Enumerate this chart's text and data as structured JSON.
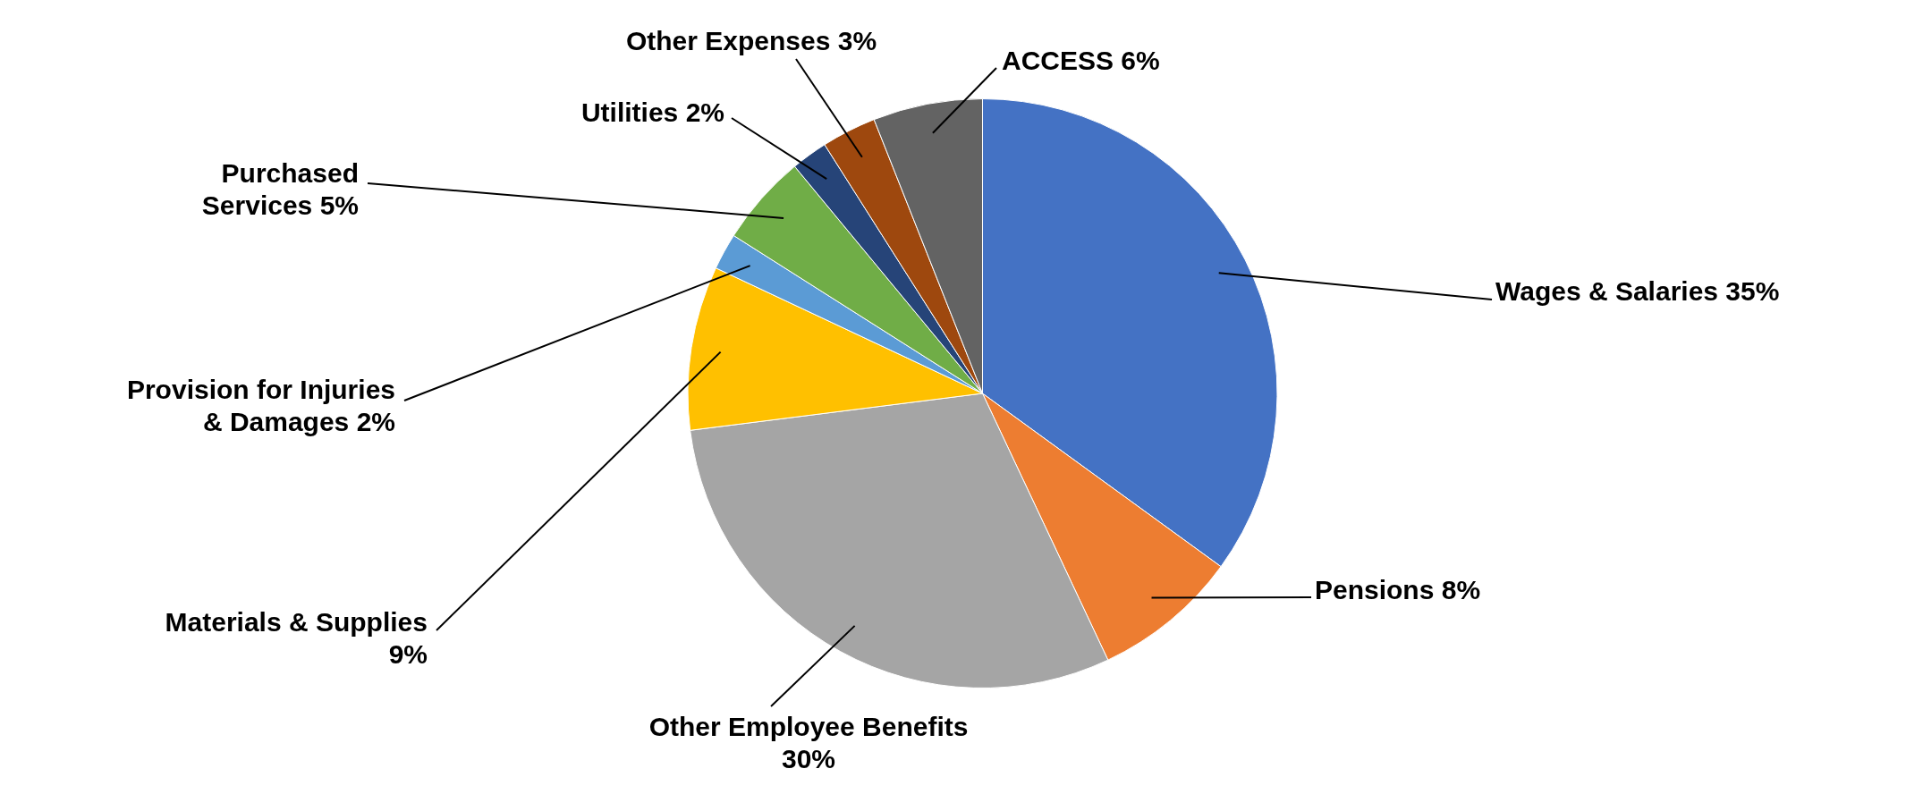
{
  "chart_data": {
    "type": "pie",
    "categories": [
      "Wages & Salaries",
      "Pensions",
      "Other Employee Benefits",
      "Materials & Supplies",
      "Provision for Injuries & Damages",
      "Purchased Services",
      "Utilities",
      "Other Expenses",
      "ACCESS"
    ],
    "values": [
      35,
      8,
      30,
      9,
      2,
      5,
      2,
      3,
      6
    ],
    "value_labels": [
      "35%",
      "8%",
      "30%",
      "9%",
      "2%",
      "5%",
      "2%",
      "3%",
      "6%"
    ],
    "colors": [
      "#4472c4",
      "#ed7d31",
      "#a5a5a5",
      "#ffc000",
      "#5b9bd5",
      "#70ad47",
      "#264478",
      "#9e480e",
      "#636363"
    ],
    "legend": false
  }
}
